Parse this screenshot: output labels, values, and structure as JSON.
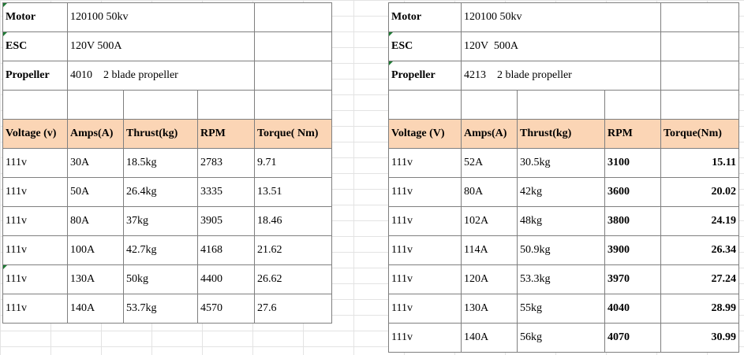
{
  "left": {
    "info": [
      {
        "label": "Motor",
        "value": "120100 50kv"
      },
      {
        "label": "ESC",
        "value": "120V 500A"
      },
      {
        "label": "Propeller",
        "value": "4010    2 blade propeller"
      }
    ],
    "headers": [
      "Voltage (v)",
      "Amps(A)",
      "Thrust(kg)",
      "RPM",
      "Torque( Nm)"
    ],
    "rows": [
      [
        "111v",
        "30A",
        "18.5kg",
        "2783",
        "9.71"
      ],
      [
        "111v",
        "50A",
        "26.4kg",
        "3335",
        "13.51"
      ],
      [
        "111v",
        "80A",
        "37kg",
        "3905",
        "18.46"
      ],
      [
        "111v",
        "100A",
        "42.7kg",
        "4168",
        "21.62"
      ],
      [
        "111v",
        "130A",
        "50kg",
        "4400",
        "26.62"
      ],
      [
        "111v",
        "140A",
        "53.7kg",
        "4570",
        "27.6"
      ]
    ]
  },
  "right": {
    "info": [
      {
        "label": "Motor",
        "value": "120100 50kv"
      },
      {
        "label": "ESC",
        "value": "120V  500A"
      },
      {
        "label": "Propeller",
        "value": "4213    2 blade propeller"
      }
    ],
    "headers": [
      "Voltage (V)",
      "Amps(A)",
      "Thrust(kg)",
      "RPM",
      "Torque(Nm)"
    ],
    "rows": [
      [
        "111v",
        "52A",
        "30.5kg",
        "3100",
        "15.11"
      ],
      [
        "111v",
        "80A",
        "42kg",
        "3600",
        "20.02"
      ],
      [
        "111v",
        "102A",
        "48kg",
        "3800",
        "24.19"
      ],
      [
        "111v",
        "114A",
        "50.9kg",
        "3900",
        "26.34"
      ],
      [
        "111v",
        "120A",
        "53.3kg",
        "3970",
        "27.24"
      ],
      [
        "111v",
        "130A",
        "55kg",
        "4040",
        "28.99"
      ],
      [
        "111v",
        "140A",
        "56kg",
        "4070",
        "30.99"
      ]
    ]
  }
}
